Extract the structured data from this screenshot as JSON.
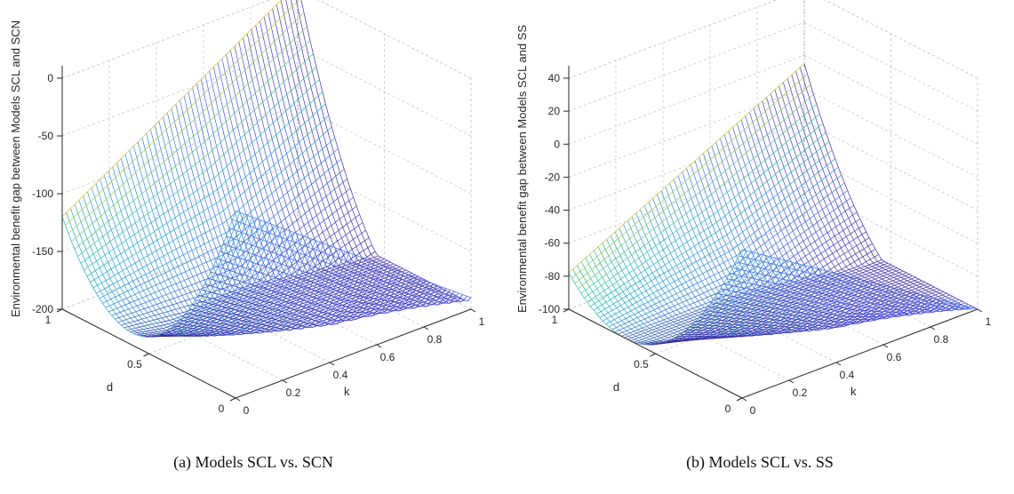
{
  "chart_data": [
    {
      "type": "surface",
      "caption": "(a) Models SCL vs. SCN",
      "zlabel": "Environmental benefit gap between Models SCL and SCN",
      "xlabel": "k",
      "ylabel": "d",
      "xlim": [
        0,
        1
      ],
      "ylim": [
        0,
        1
      ],
      "zlim": [
        -200,
        0
      ],
      "x_ticks": [
        "0",
        "0.2",
        "0.4",
        "0.6",
        "0.8",
        "1"
      ],
      "y_ticks": [
        "0",
        "0.5",
        "1"
      ],
      "z_ticks": [
        "-200",
        "-150",
        "-100",
        "-50",
        "0"
      ],
      "corner_values": {
        "k0_d0": -38,
        "k1_d0": -190,
        "k0_d1": -120,
        "k1_d1": 5
      },
      "minimum": -195,
      "grid": true,
      "colormap": "parula"
    },
    {
      "type": "surface",
      "caption": "(b) Models SCL vs. SS",
      "zlabel": "Environmental benefit gap between Models SCL and SS",
      "xlabel": "k",
      "ylabel": "d",
      "xlim": [
        0,
        1
      ],
      "ylim": [
        0,
        1
      ],
      "zlim": [
        -100,
        40
      ],
      "x_ticks": [
        "0",
        "0.2",
        "0.4",
        "0.6",
        "0.8",
        "1"
      ],
      "y_ticks": [
        "0",
        "0.5",
        "1"
      ],
      "z_ticks": [
        "-100",
        "-80",
        "-60",
        "-40",
        "-20",
        "0",
        "20",
        "40"
      ],
      "corner_values": {
        "k0_d0": -10,
        "k1_d0": -100,
        "k0_d1": -78,
        "k1_d1": -5
      },
      "minimum": -100,
      "grid": true,
      "colormap": "parula"
    }
  ]
}
